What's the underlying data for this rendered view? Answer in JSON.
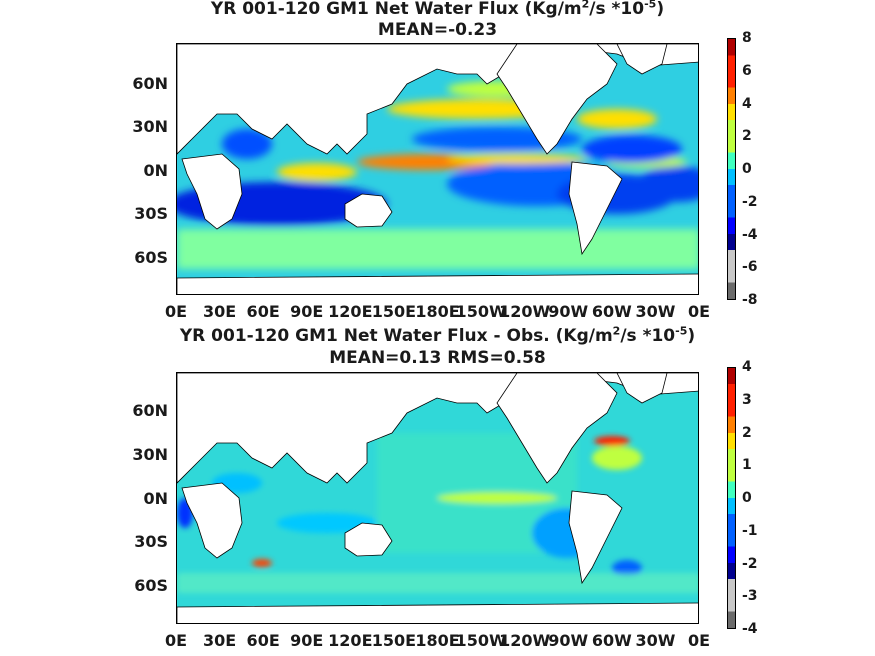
{
  "panels": [
    {
      "title_main": "YR 001-120 GM1  Net Water Flux (Kg/m",
      "title_sup1": "2",
      "title_mid": "/s *10",
      "title_sup2": "-5",
      "title_end": ")",
      "subtitle": "MEAN=-0.23",
      "colorbar_ticks": [
        "8",
        "6",
        "4",
        "2",
        "0",
        "-2",
        "-4",
        "-6",
        "-8"
      ]
    },
    {
      "title_main": "YR 001-120 GM1  Net Water Flux - Obs. (Kg/m",
      "title_sup1": "2",
      "title_mid": "/s *10",
      "title_sup2": "-5",
      "title_end": ")",
      "subtitle": "MEAN=0.13 RMS=0.58",
      "colorbar_ticks": [
        "4",
        "3",
        "2",
        "1",
        "0",
        "-1",
        "-2",
        "-3",
        "-4"
      ]
    }
  ],
  "lat_labels": [
    "60N",
    "30N",
    "0N",
    "30S",
    "60S"
  ],
  "lon_labels": [
    "0E",
    "30E",
    "60E",
    "90E",
    "120E",
    "150E",
    "180E",
    "150W",
    "120W",
    "90W",
    "60W",
    "30W",
    "0E"
  ],
  "colormap": [
    "#6b6b6b",
    "#c8c8c8",
    "#00008f",
    "#0000ff",
    "#0060ff",
    "#00bfff",
    "#40ffbf",
    "#bfff40",
    "#ffdf00",
    "#ff8000",
    "#ff2000",
    "#b00000"
  ],
  "colors": {
    "ocean_base_top": "#2bd4e0",
    "ocean_base_bottom": "#3ad0e8",
    "land": "#ffffff"
  }
}
